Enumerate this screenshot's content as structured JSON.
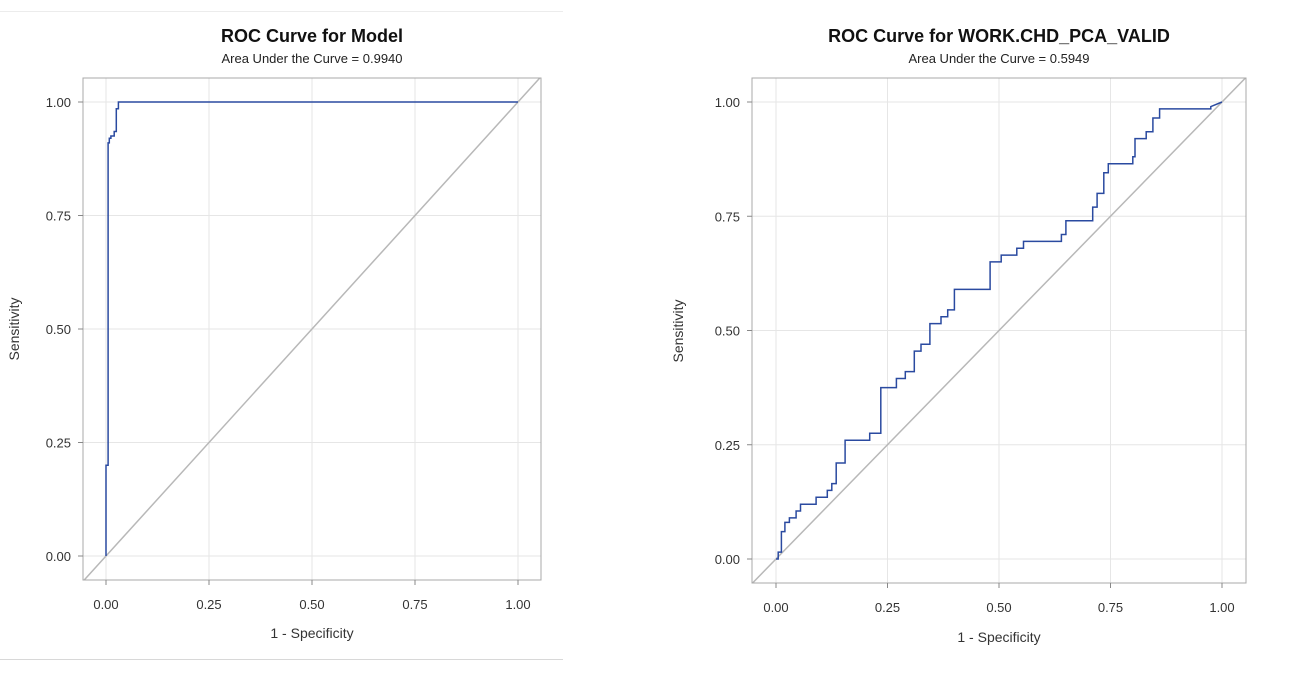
{
  "chart_data": [
    {
      "type": "line",
      "title": "ROC Curve for Model",
      "subtitle": "Area Under the Curve = 0.9940",
      "xlabel": "1 - Specificity",
      "ylabel": "Sensitivity",
      "xlim": [
        0,
        1
      ],
      "ylim": [
        0,
        1
      ],
      "xticks": [
        "0.00",
        "0.25",
        "0.50",
        "0.75",
        "1.00"
      ],
      "yticks": [
        "0.00",
        "0.25",
        "0.50",
        "0.75",
        "1.00"
      ],
      "grid": true,
      "colors": {
        "curve": "#2a4aa0",
        "diagonal": "#b8b8b8"
      },
      "series": [
        {
          "x": [
            0,
            0,
            0.005,
            0.005,
            0.008,
            0.008,
            0.012,
            0.012,
            0.02,
            0.02,
            0.025,
            0.025,
            0.03,
            0.03,
            1.0
          ],
          "y": [
            0,
            0.2,
            0.2,
            0.91,
            0.91,
            0.92,
            0.92,
            0.925,
            0.925,
            0.935,
            0.935,
            0.985,
            0.985,
            1.0,
            1.0
          ]
        }
      ]
    },
    {
      "type": "line",
      "title": "ROC Curve for WORK.CHD_PCA_VALID",
      "subtitle": "Area Under the Curve = 0.5949",
      "xlabel": "1 - Specificity",
      "ylabel": "Sensitivity",
      "xlim": [
        0,
        1
      ],
      "ylim": [
        0,
        1
      ],
      "xticks": [
        "0.00",
        "0.25",
        "0.50",
        "0.75",
        "1.00"
      ],
      "yticks": [
        "0.00",
        "0.25",
        "0.50",
        "0.75",
        "1.00"
      ],
      "grid": true,
      "colors": {
        "curve": "#2a4aa0",
        "diagonal": "#b8b8b8"
      },
      "series": [
        {
          "x": [
            0,
            0.005,
            0.005,
            0.012,
            0.012,
            0.02,
            0.02,
            0.03,
            0.03,
            0.045,
            0.045,
            0.055,
            0.055,
            0.09,
            0.09,
            0.115,
            0.115,
            0.125,
            0.125,
            0.135,
            0.135,
            0.155,
            0.155,
            0.21,
            0.21,
            0.235,
            0.235,
            0.27,
            0.27,
            0.29,
            0.29,
            0.31,
            0.31,
            0.325,
            0.325,
            0.345,
            0.345,
            0.37,
            0.37,
            0.385,
            0.385,
            0.4,
            0.4,
            0.48,
            0.48,
            0.505,
            0.505,
            0.54,
            0.54,
            0.555,
            0.555,
            0.64,
            0.64,
            0.65,
            0.65,
            0.71,
            0.71,
            0.72,
            0.72,
            0.735,
            0.735,
            0.745,
            0.745,
            0.8,
            0.8,
            0.805,
            0.805,
            0.83,
            0.83,
            0.845,
            0.845,
            0.86,
            0.86,
            0.975,
            0.975,
            1.0
          ],
          "y": [
            0,
            0,
            0.015,
            0.015,
            0.06,
            0.06,
            0.08,
            0.08,
            0.09,
            0.09,
            0.105,
            0.105,
            0.12,
            0.12,
            0.135,
            0.135,
            0.15,
            0.15,
            0.165,
            0.165,
            0.21,
            0.21,
            0.26,
            0.26,
            0.275,
            0.275,
            0.375,
            0.375,
            0.395,
            0.395,
            0.41,
            0.41,
            0.455,
            0.455,
            0.47,
            0.47,
            0.515,
            0.515,
            0.53,
            0.53,
            0.545,
            0.545,
            0.59,
            0.59,
            0.65,
            0.65,
            0.665,
            0.665,
            0.68,
            0.68,
            0.695,
            0.695,
            0.71,
            0.71,
            0.74,
            0.74,
            0.77,
            0.77,
            0.8,
            0.8,
            0.845,
            0.845,
            0.865,
            0.865,
            0.88,
            0.88,
            0.92,
            0.92,
            0.935,
            0.935,
            0.965,
            0.965,
            0.985,
            0.985,
            0.99,
            1.0
          ]
        }
      ]
    }
  ]
}
